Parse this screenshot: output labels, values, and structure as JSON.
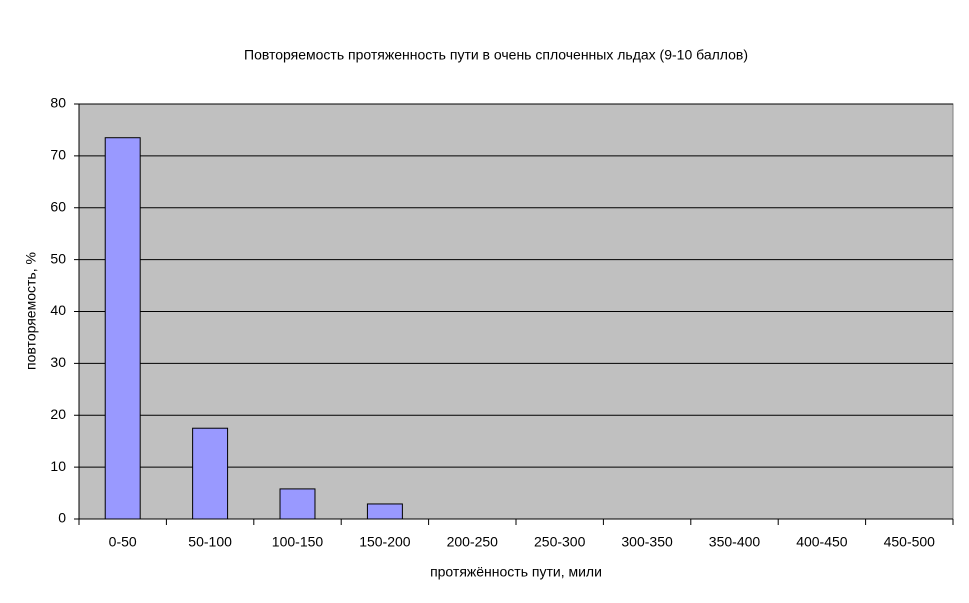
{
  "chart_data": {
    "type": "bar",
    "title": "Повторяемость протяженность пути в очень сплоченных льдах (9-10 баллов)",
    "x_label": "протяжённость пути, мили",
    "y_label": "повторяемость, %",
    "categories": [
      "0-50",
      "50-100",
      "100-150",
      "150-200",
      "200-250",
      "250-300",
      "300-350",
      "350-400",
      "400-450",
      "450-500"
    ],
    "values": [
      73.5,
      17.5,
      5.8,
      2.9,
      0,
      0,
      0,
      0,
      0,
      0
    ],
    "color": "#9999ff",
    "plot_background": "#c0c0c0",
    "ylim": [
      0,
      80
    ],
    "yticks": [
      0,
      10,
      20,
      30,
      40,
      50,
      60,
      70,
      80
    ],
    "grid": true
  }
}
